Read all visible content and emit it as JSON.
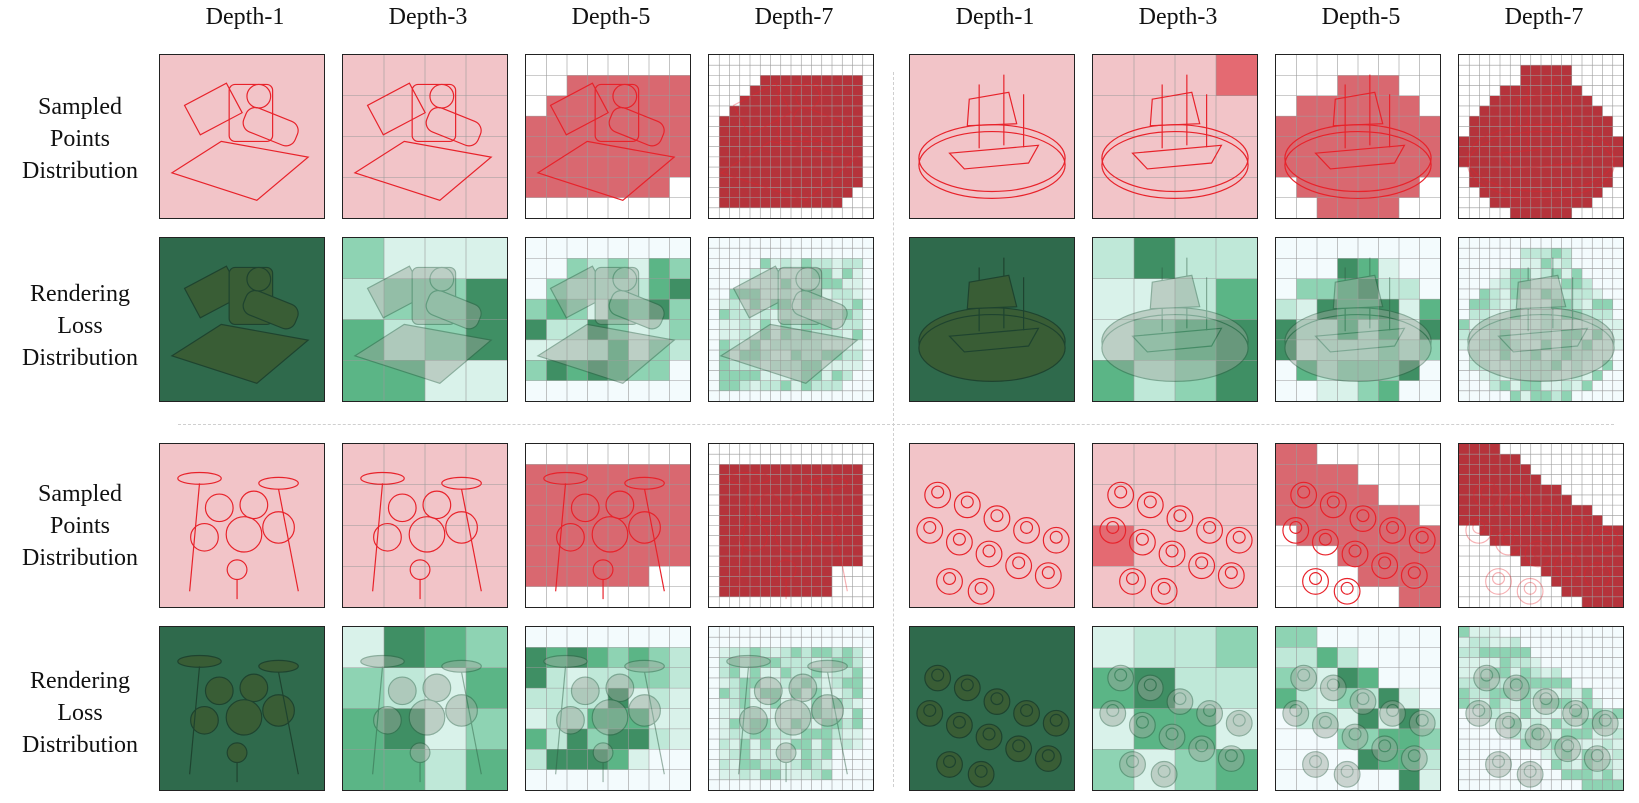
{
  "column_headers": [
    "Depth-1",
    "Depth-3",
    "Depth-5",
    "Depth-7",
    "Depth-1",
    "Depth-3",
    "Depth-5",
    "Depth-7"
  ],
  "row_labels": {
    "sampled": [
      "Sampled",
      "Points",
      "Distribution"
    ],
    "loss": [
      "Rendering",
      "Loss",
      "Distribution"
    ]
  },
  "colors": {
    "sample_red": "#e8222a",
    "sample_bg": "#f2c4c8",
    "loss_dark": "#2f6a4c",
    "loss_mid": "#5bb586",
    "loss_light": "#bfe8d8",
    "grid_line": "#9a9a9a"
  },
  "panels": {
    "row_kinds": [
      "sampled",
      "loss",
      "sampled",
      "loss"
    ],
    "scenes": [
      "bulldozer",
      "ship",
      "drums",
      "cups"
    ],
    "depths": [
      1,
      3,
      5,
      7
    ]
  }
}
